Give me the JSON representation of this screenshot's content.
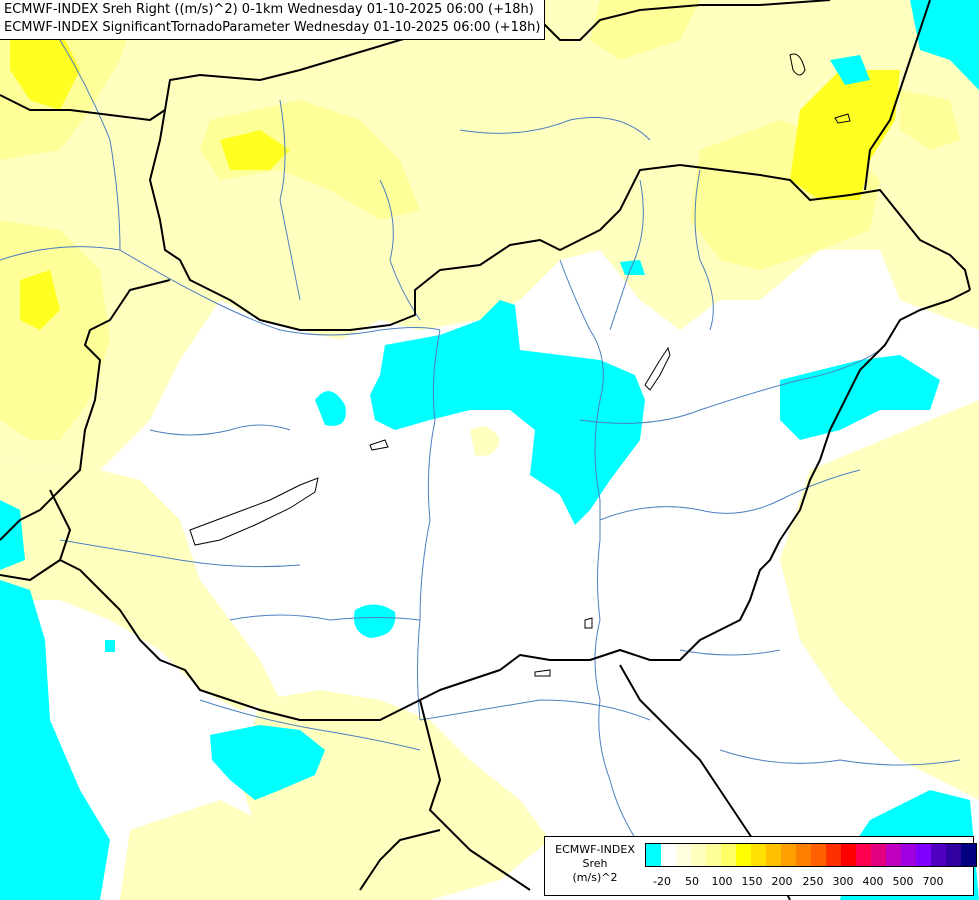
{
  "title": {
    "line1": "ECMWF-INDEX Sreh Right ((m/s)^2) 0-1km Wednesday 01-10-2025 06:00 (+18h)",
    "line2": "ECMWF-INDEX SignificantTornadoParameter Wednesday 01-10-2025 06:00 (+18h)"
  },
  "legend": {
    "source": "ECMWF-INDEX",
    "variable": "Sreh",
    "unit": "(m/s)^2",
    "colors": [
      "#00ffff",
      "#ffffff",
      "#ffffe0",
      "#ffffc0",
      "#ffff99",
      "#ffff66",
      "#ffff00",
      "#ffe000",
      "#ffc000",
      "#ffa000",
      "#ff8000",
      "#ff6000",
      "#ff3000",
      "#ff0000",
      "#ff0050",
      "#e00080",
      "#c000c0",
      "#a000e0",
      "#8000ff",
      "#5000c0",
      "#3000a0",
      "#000080"
    ],
    "ticks": [
      {
        "label": "-20",
        "index": 1
      },
      {
        "label": "50",
        "index": 3
      },
      {
        "label": "100",
        "index": 5
      },
      {
        "label": "150",
        "index": 7
      },
      {
        "label": "200",
        "index": 9
      },
      {
        "label": "250",
        "index": 11
      },
      {
        "label": "300",
        "index": 13
      },
      {
        "label": "400",
        "index": 15
      },
      {
        "label": "500",
        "index": 17
      },
      {
        "label": "700",
        "index": 19
      }
    ]
  },
  "colors": {
    "negative": "#00ffff",
    "light_yellow": "#ffffc0",
    "yellow": "#ffff66",
    "strong_yellow": "#ffff00",
    "border": "#000000",
    "river": "#4d7fbf"
  }
}
